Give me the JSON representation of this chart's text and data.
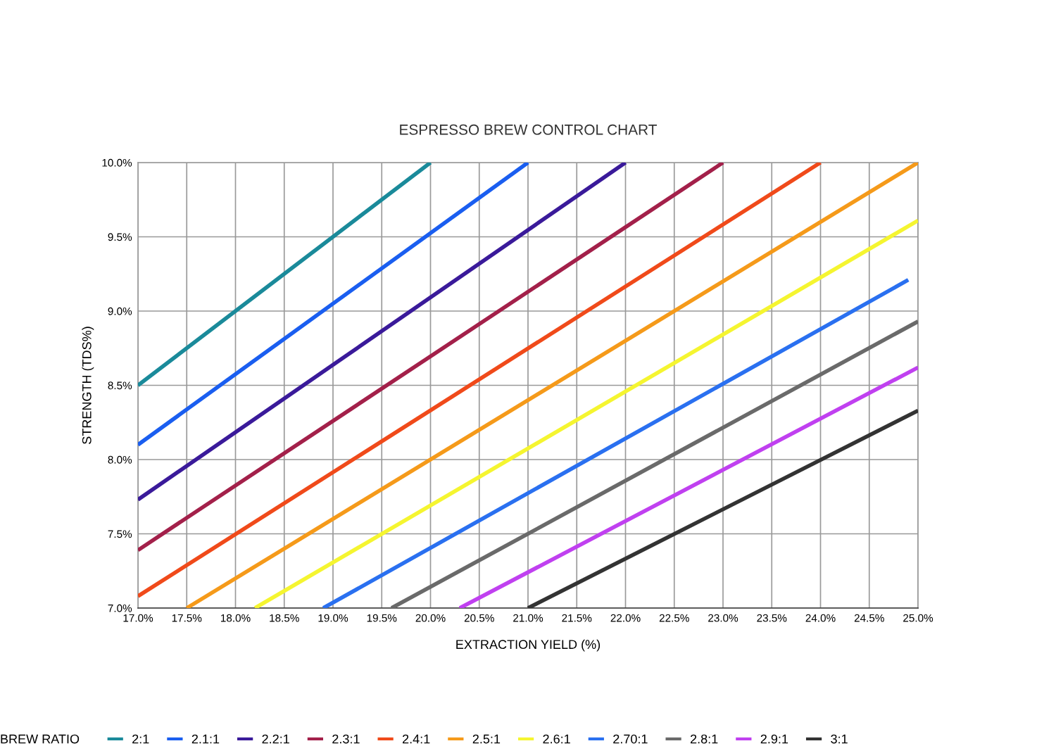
{
  "chart_data": {
    "type": "line",
    "title": "ESPRESSO BREW CONTROL CHART",
    "xlabel": "EXTRACTION YIELD (%)",
    "ylabel": "STRENGTH (TDS%)",
    "legend_title": "BREW RATIO",
    "legend": "bottom",
    "grid": true,
    "marker": "none",
    "line_style": "solid",
    "xlim": [
      17.0,
      25.0
    ],
    "ylim": [
      7.0,
      10.0
    ],
    "xticks": [
      {
        "value": 17.0,
        "label": "17.0%"
      },
      {
        "value": 17.5,
        "label": "17.5%"
      },
      {
        "value": 18.0,
        "label": "18.0%"
      },
      {
        "value": 18.5,
        "label": "18.5%"
      },
      {
        "value": 19.0,
        "label": "19.0%"
      },
      {
        "value": 19.5,
        "label": "19.5%"
      },
      {
        "value": 20.0,
        "label": "20.0%"
      },
      {
        "value": 20.5,
        "label": "20.5%"
      },
      {
        "value": 21.0,
        "label": "21.0%"
      },
      {
        "value": 21.5,
        "label": "21.5%"
      },
      {
        "value": 22.0,
        "label": "22.0%"
      },
      {
        "value": 22.5,
        "label": "22.5%"
      },
      {
        "value": 23.0,
        "label": "23.0%"
      },
      {
        "value": 23.5,
        "label": "23.5%"
      },
      {
        "value": 24.0,
        "label": "24.0%"
      },
      {
        "value": 24.5,
        "label": "24.5%"
      },
      {
        "value": 25.0,
        "label": "25.0%"
      }
    ],
    "yticks": [
      {
        "value": 7.0,
        "label": "7.0%"
      },
      {
        "value": 7.5,
        "label": "7.5%"
      },
      {
        "value": 8.0,
        "label": "8.0%"
      },
      {
        "value": 8.5,
        "label": "8.5%"
      },
      {
        "value": 9.0,
        "label": "9.0%"
      },
      {
        "value": 9.5,
        "label": "9.5%"
      },
      {
        "value": 10.0,
        "label": "10.0%"
      }
    ],
    "series": [
      {
        "name": "2:1",
        "color": "#1a8a9a",
        "x": [
          17.0,
          20.0
        ],
        "values": [
          8.5,
          10.0
        ]
      },
      {
        "name": "2.1:1",
        "color": "#1a5ef0",
        "x": [
          17.0,
          21.0
        ],
        "values": [
          8.1,
          10.0
        ]
      },
      {
        "name": "2.2:1",
        "color": "#3a1a9a",
        "x": [
          17.0,
          22.0
        ],
        "values": [
          7.73,
          10.0
        ]
      },
      {
        "name": "2.3:1",
        "color": "#a3204a",
        "x": [
          17.0,
          23.0
        ],
        "values": [
          7.39,
          10.0
        ]
      },
      {
        "name": "2.4:1",
        "color": "#f04a1a",
        "x": [
          17.0,
          24.0
        ],
        "values": [
          7.08,
          10.0
        ]
      },
      {
        "name": "2.5:1",
        "color": "#f59a1a",
        "x": [
          17.5,
          25.0
        ],
        "values": [
          7.0,
          10.0
        ]
      },
      {
        "name": "2.6:1",
        "color": "#f5f530",
        "x": [
          18.2,
          25.0
        ],
        "values": [
          7.0,
          9.61
        ]
      },
      {
        "name": "2.70:1",
        "color": "#2a70f0",
        "x": [
          18.9,
          24.9
        ],
        "values": [
          7.0,
          9.21
        ]
      },
      {
        "name": "2.8:1",
        "color": "#6a6a6a",
        "x": [
          19.6,
          25.0
        ],
        "values": [
          7.0,
          8.93
        ]
      },
      {
        "name": "2.9:1",
        "color": "#c040f0",
        "x": [
          20.3,
          25.0
        ],
        "values": [
          7.0,
          8.62
        ]
      },
      {
        "name": "3:1",
        "color": "#333333",
        "x": [
          21.0,
          25.0
        ],
        "values": [
          7.0,
          8.33
        ]
      }
    ]
  }
}
